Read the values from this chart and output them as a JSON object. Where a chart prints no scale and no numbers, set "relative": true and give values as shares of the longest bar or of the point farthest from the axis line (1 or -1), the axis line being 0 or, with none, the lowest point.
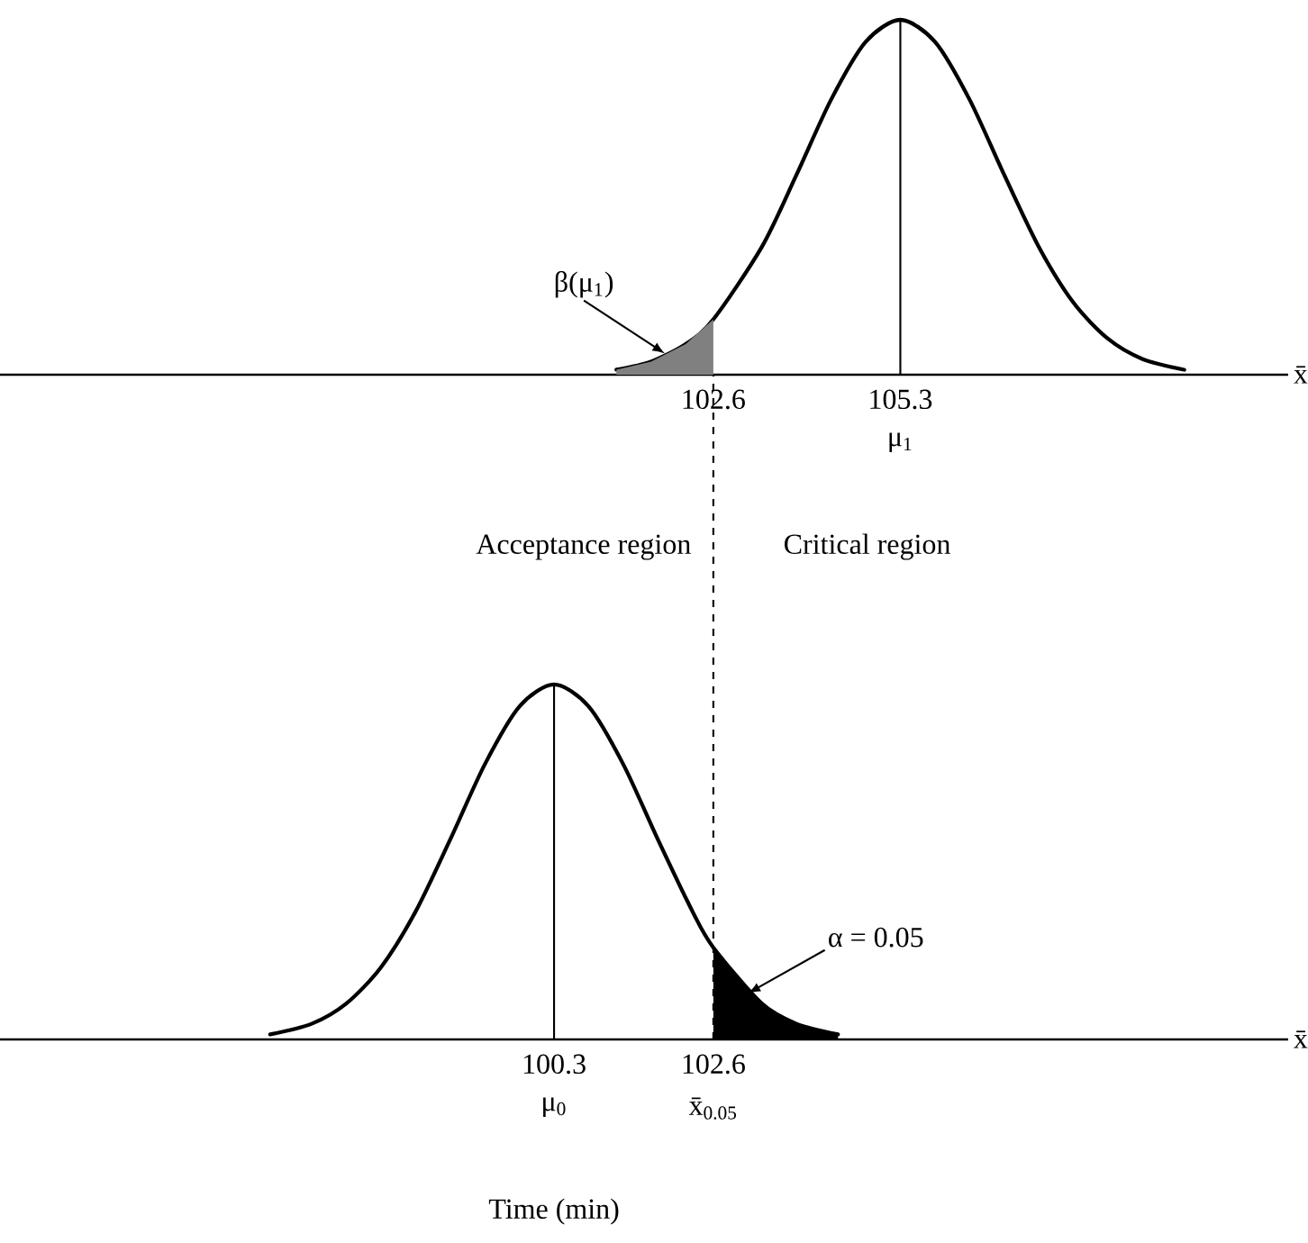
{
  "chart_data": [
    {
      "type": "line",
      "relative": true,
      "xlim": [
        92.3,
        110.9
      ],
      "xticks": [
        102.6,
        105.3
      ],
      "xlabel": "x̄",
      "tick_labels": "x",
      "x": [
        101.2,
        101.7,
        102.2,
        102.6,
        103.3,
        103.8,
        104.3,
        104.8,
        105.3,
        105.8,
        106.3,
        106.8,
        107.3,
        107.8,
        108.3,
        108.8,
        109.4
      ],
      "series": [
        {
          "type": "line",
          "color": "#000000",
          "values": [
            0.014,
            0.037,
            0.086,
            0.156,
            0.36,
            0.563,
            0.775,
            0.938,
            1,
            0.938,
            0.775,
            0.563,
            0.36,
            0.203,
            0.101,
            0.044,
            0.014
          ]
        },
        {
          "type": "area",
          "color": "#808080",
          "x": [
            101.2,
            101.7,
            102.2,
            102.6
          ],
          "values": [
            0.014,
            0.037,
            0.086,
            0.156
          ]
        }
      ],
      "ref_lines": [
        {
          "axis": "x",
          "value": 105.3,
          "label": "μ$_{1}$"
        }
      ],
      "annotations": [
        {
          "text": "β(μ$_{1}$)",
          "x": 101.9,
          "y": 0.06
        },
        "Acceptance region",
        "Critical region"
      ]
    },
    {
      "type": "line",
      "relative": true,
      "xlim": [
        92.3,
        110.9
      ],
      "xticks": [
        100.3,
        102.6
      ],
      "xlabel": "x̄",
      "tick_labels": "x",
      "x": [
        96.2,
        96.8,
        97.3,
        97.8,
        98.3,
        98.8,
        99.3,
        99.8,
        100.3,
        100.8,
        101.3,
        101.8,
        102.3,
        102.6,
        103.3,
        103.8,
        104.4
      ],
      "series": [
        {
          "type": "line",
          "color": "#000000",
          "values": [
            0.014,
            0.044,
            0.101,
            0.203,
            0.36,
            0.563,
            0.775,
            0.938,
            1,
            0.938,
            0.775,
            0.563,
            0.36,
            0.259,
            0.101,
            0.044,
            0.014
          ]
        },
        {
          "type": "area",
          "color": "#000000",
          "x": [
            102.6,
            103.3,
            103.8,
            104.4
          ],
          "values": [
            0.259,
            0.101,
            0.044,
            0.014
          ]
        }
      ],
      "ref_lines": [
        {
          "axis": "x",
          "value": 100.3,
          "label": "μ$_{0}$"
        },
        {
          "axis": "x",
          "value": 102.6,
          "label": "x̄$_{0.05}$",
          "line_style": "dashed"
        }
      ],
      "annotations": [
        {
          "text": "α = 0.05",
          "x": 103.1,
          "y": 0.13
        },
        "Time (min)"
      ]
    }
  ]
}
